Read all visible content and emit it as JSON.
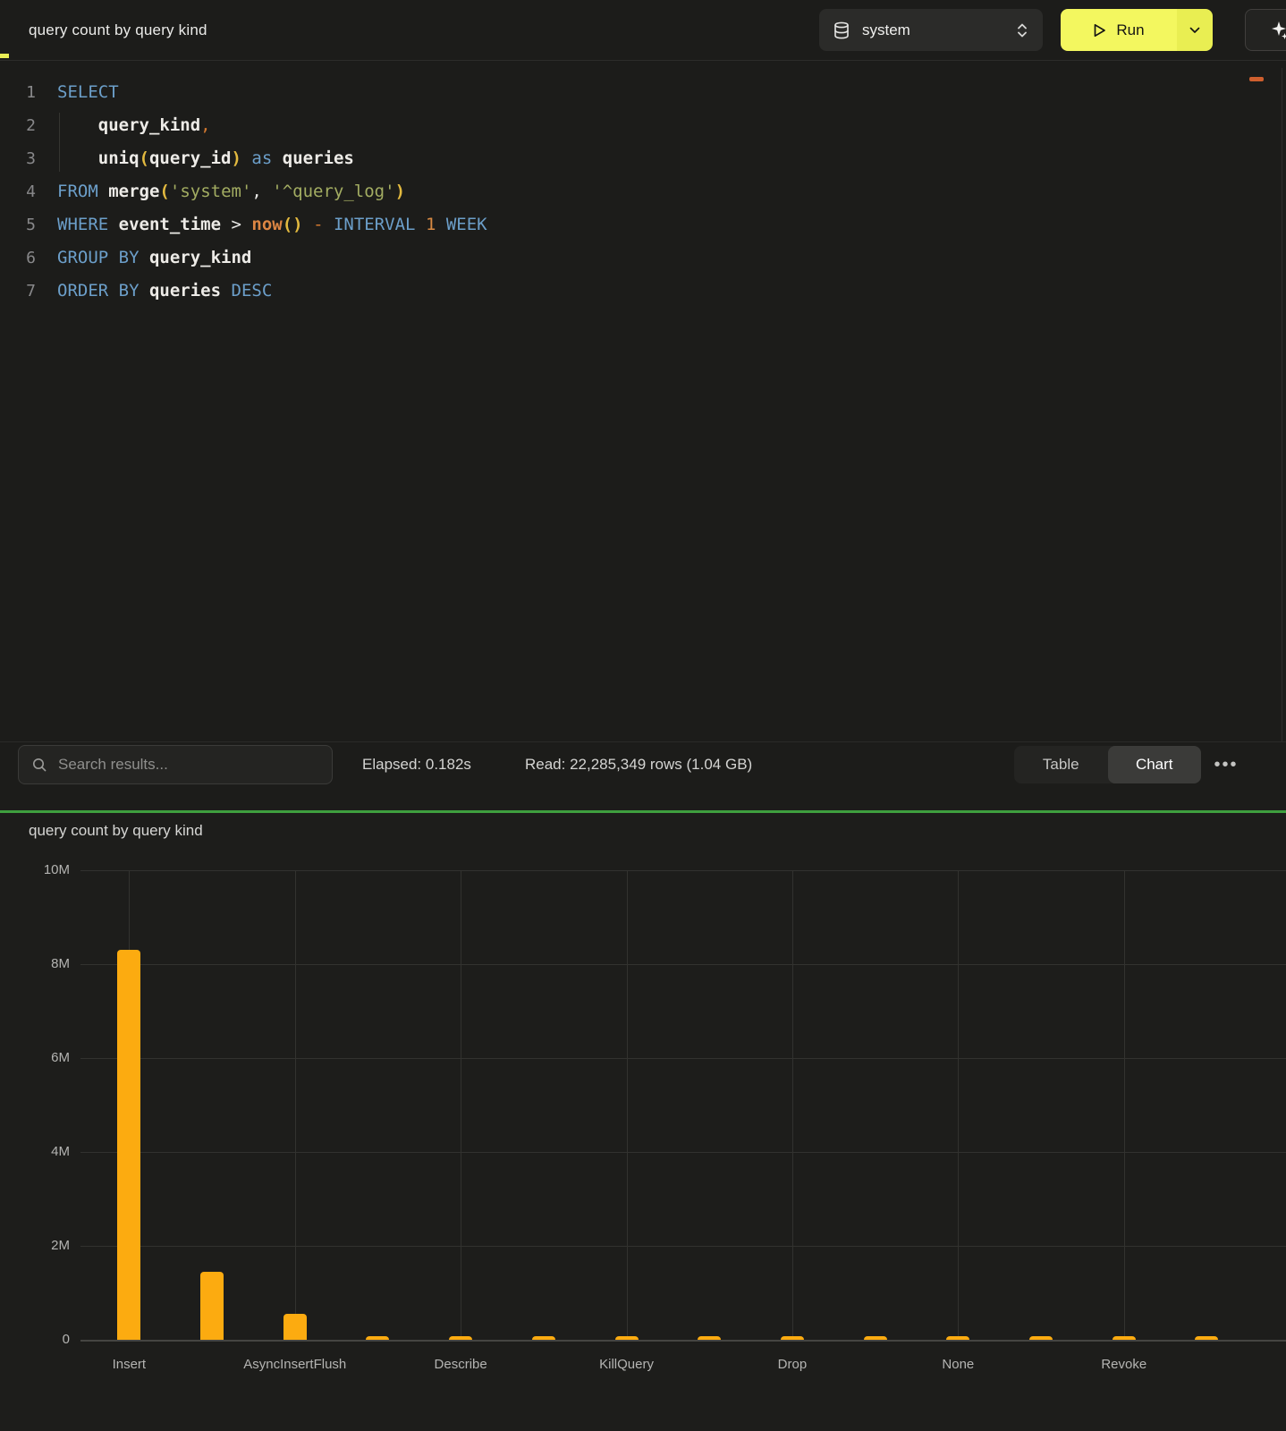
{
  "toolbar": {
    "title": "query count by query kind",
    "database_selector": {
      "value": "system"
    },
    "run_button": {
      "label": "Run"
    }
  },
  "icons": {
    "database": "database-cylinder",
    "selector": "chevron-up-down",
    "run": "play-triangle",
    "run_more": "chevron-down",
    "assistant": "sparkles",
    "search": "magnifier",
    "more": "ellipsis"
  },
  "editor": {
    "lines": [
      {
        "num": "1",
        "tokens": [
          [
            "kw",
            "SELECT"
          ]
        ]
      },
      {
        "num": "2",
        "tokens": [
          [
            "pln",
            "    "
          ],
          [
            "id",
            "query_kind"
          ],
          [
            "opo",
            ","
          ]
        ]
      },
      {
        "num": "3",
        "tokens": [
          [
            "pln",
            "    "
          ],
          [
            "id",
            "uniq"
          ],
          [
            "par",
            "("
          ],
          [
            "id",
            "query_id"
          ],
          [
            "par",
            ")"
          ],
          [
            "pln",
            " "
          ],
          [
            "kw",
            "as"
          ],
          [
            "pln",
            " "
          ],
          [
            "id",
            "queries"
          ]
        ]
      },
      {
        "num": "4",
        "tokens": [
          [
            "kw",
            "FROM"
          ],
          [
            "pln",
            " "
          ],
          [
            "id",
            "merge"
          ],
          [
            "par",
            "("
          ],
          [
            "str",
            "'system'"
          ],
          [
            "op",
            ","
          ],
          [
            "pln",
            " "
          ],
          [
            "str",
            "'^query_log'"
          ],
          [
            "par",
            ")"
          ]
        ]
      },
      {
        "num": "5",
        "tokens": [
          [
            "kw",
            "WHERE"
          ],
          [
            "pln",
            " "
          ],
          [
            "id",
            "event_time"
          ],
          [
            "pln",
            " "
          ],
          [
            "op",
            ">"
          ],
          [
            "pln",
            " "
          ],
          [
            "fn",
            "now"
          ],
          [
            "par",
            "()"
          ],
          [
            "pln",
            " "
          ],
          [
            "opo",
            "-"
          ],
          [
            "pln",
            " "
          ],
          [
            "kw",
            "INTERVAL"
          ],
          [
            "pln",
            " "
          ],
          [
            "num",
            "1"
          ],
          [
            "pln",
            " "
          ],
          [
            "kw",
            "WEEK"
          ]
        ]
      },
      {
        "num": "6",
        "tokens": [
          [
            "kw",
            "GROUP BY"
          ],
          [
            "pln",
            " "
          ],
          [
            "id",
            "query_kind"
          ]
        ]
      },
      {
        "num": "7",
        "tokens": [
          [
            "kw",
            "ORDER BY"
          ],
          [
            "pln",
            " "
          ],
          [
            "id",
            "queries"
          ],
          [
            "pln",
            " "
          ],
          [
            "kw",
            "DESC"
          ]
        ]
      }
    ]
  },
  "results_bar": {
    "search_placeholder": "Search results...",
    "elapsed": "Elapsed: 0.182s",
    "read": "Read: 22,285,349 rows (1.04 GB)",
    "view_toggle": {
      "options": [
        "Table",
        "Chart"
      ],
      "selected": "Chart"
    },
    "more_label": "•••"
  },
  "colors": {
    "bar": "#fcab10",
    "run_yellow": "#f3f75f",
    "divider_green": "#3f9f3f"
  },
  "chart_data": {
    "type": "bar",
    "title": "query count by query kind",
    "categories": [
      "Insert",
      "",
      "AsyncInsertFlush",
      "",
      "Describe",
      "",
      "KillQuery",
      "",
      "Drop",
      "",
      "None",
      "",
      "Revoke",
      ""
    ],
    "values": [
      8300000,
      1450000,
      550000,
      70000,
      70000,
      70000,
      70000,
      70000,
      70000,
      70000,
      70000,
      70000,
      70000,
      70000
    ],
    "y_ticks": [
      {
        "label": "10M",
        "value": 10000000
      },
      {
        "label": "8M",
        "value": 8000000
      },
      {
        "label": "6M",
        "value": 6000000
      },
      {
        "label": "4M",
        "value": 4000000
      },
      {
        "label": "2M",
        "value": 2000000
      },
      {
        "label": "0",
        "value": 0
      }
    ],
    "ylim": [
      0,
      10000000
    ],
    "grid": true,
    "legend": "none",
    "bar_color": "#fcab10",
    "xlabel": "",
    "ylabel": ""
  }
}
